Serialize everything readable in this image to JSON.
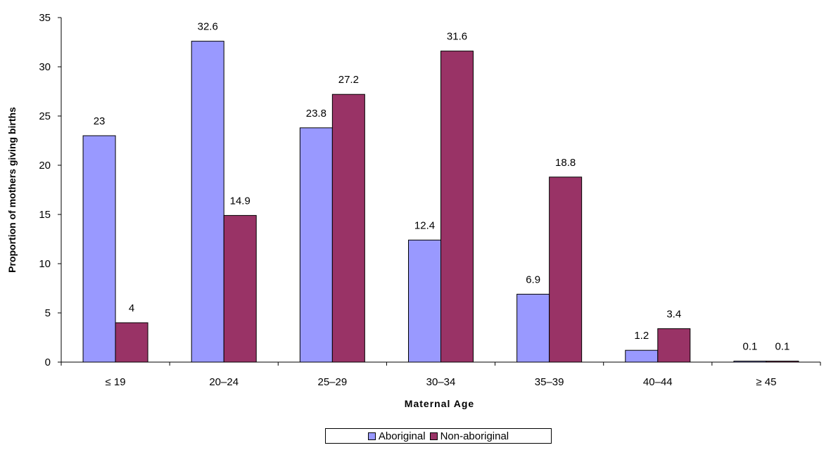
{
  "chart_data": {
    "type": "bar",
    "title": "",
    "xlabel": "Maternal Age",
    "ylabel": "Proportion of mothers giving births",
    "categories": [
      "≤ 19",
      "20–24",
      "25–29",
      "30–34",
      "35–39",
      "40–44",
      "≥ 45"
    ],
    "series": [
      {
        "name": "Aboriginal",
        "color": "#9999ff",
        "values": [
          23,
          32.6,
          23.8,
          12.4,
          6.9,
          1.2,
          0.1
        ]
      },
      {
        "name": "Non-aboriginal",
        "color": "#993366",
        "values": [
          4,
          14.9,
          27.2,
          31.6,
          18.8,
          3.4,
          0.1
        ]
      }
    ],
    "ylim": [
      0,
      35
    ],
    "yticks": [
      0,
      5,
      10,
      15,
      20,
      25,
      30,
      35
    ],
    "grid": false,
    "legend": "bottom"
  }
}
